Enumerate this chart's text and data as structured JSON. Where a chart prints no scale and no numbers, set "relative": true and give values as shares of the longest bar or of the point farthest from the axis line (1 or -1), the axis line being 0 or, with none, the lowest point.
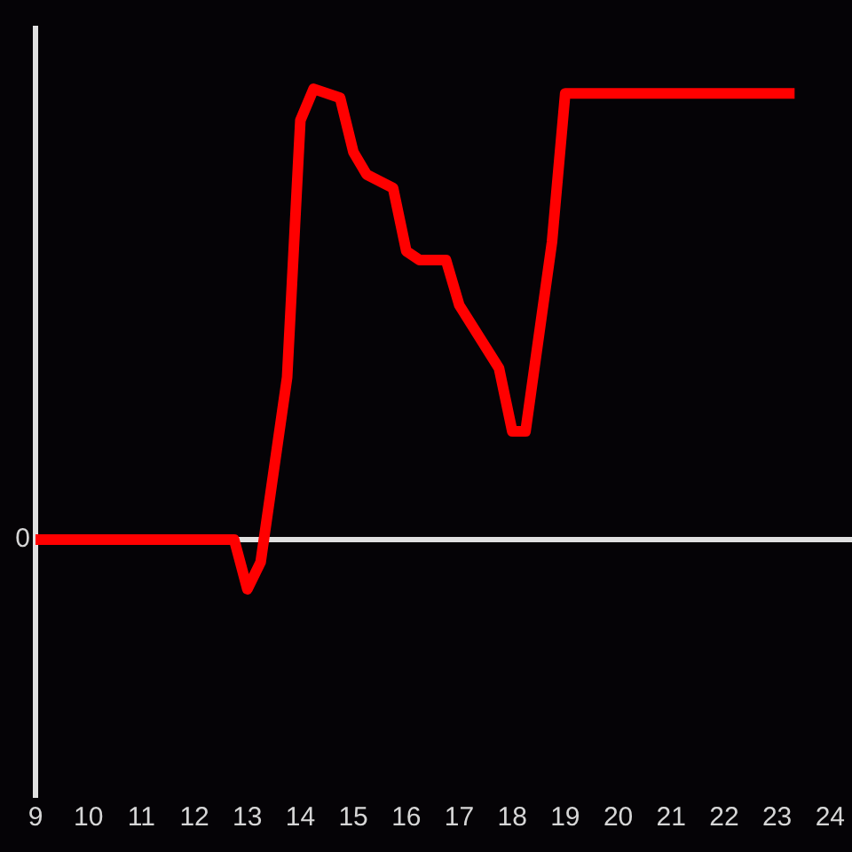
{
  "chart_data": {
    "type": "line",
    "relative": true,
    "x": [
      9,
      12.75,
      13,
      13.25,
      13.75,
      14,
      14.25,
      14.75,
      15,
      15.25,
      15.75,
      16,
      16.25,
      16.75,
      17,
      17.75,
      18,
      18.25,
      18.75,
      19,
      23.33
    ],
    "values": [
      0,
      0,
      -0.11,
      -0.05,
      0.36,
      0.93,
      1,
      0.98,
      0.86,
      0.81,
      0.78,
      0.64,
      0.62,
      0.62,
      0.52,
      0.38,
      0.24,
      0.24,
      0.66,
      0.99,
      0.99
    ],
    "color": "#ff0000",
    "xlim": [
      9,
      24
    ],
    "xticks": [
      9,
      10,
      11,
      12,
      13,
      14,
      15,
      16,
      17,
      18,
      19,
      20,
      21,
      22,
      23,
      24
    ],
    "ref_lines": [
      {
        "axis": "y",
        "value": 0,
        "label": "0",
        "color": "#e0e0e0"
      }
    ],
    "marker": "none",
    "line_style": "solid"
  }
}
